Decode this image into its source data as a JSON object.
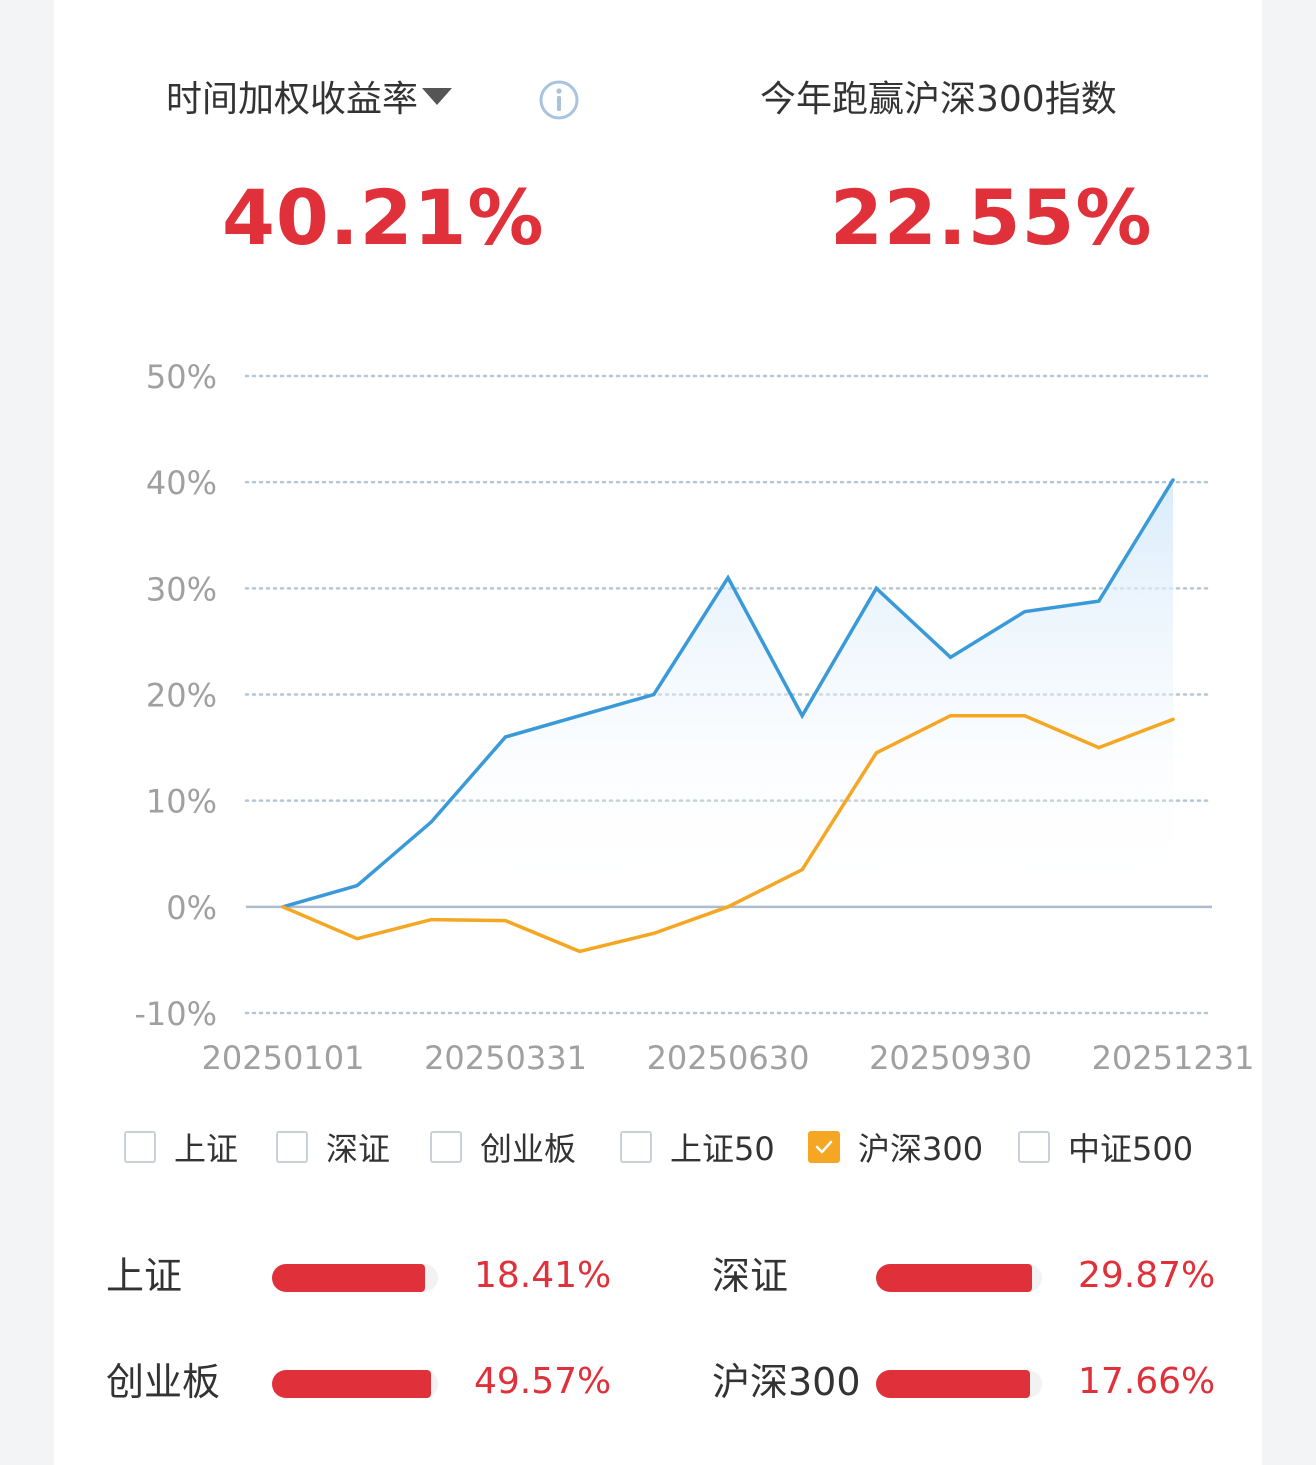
{
  "header": {
    "left_label": "时间加权收益率",
    "left_value": "40.21%",
    "right_label": "今年跑赢沪深300指数",
    "right_value": "22.55%",
    "info_icon": "info-circle-icon",
    "dropdown_icon": "caret-down-icon"
  },
  "chart_data": {
    "type": "line",
    "x": [
      "20250101",
      "20250131",
      "20250228",
      "20250331",
      "20250430",
      "20250531",
      "20250630",
      "20250731",
      "20250831",
      "20250930",
      "20251031",
      "20251130",
      "20251231"
    ],
    "x_tick_labels": [
      "20250101",
      "20250331",
      "20250630",
      "20250930",
      "20251231"
    ],
    "y_tick_labels": [
      "50%",
      "40%",
      "30%",
      "20%",
      "10%",
      "0%",
      "-10%"
    ],
    "ylim": [
      -10,
      50
    ],
    "grid": "dotted horizontal",
    "series": [
      {
        "values": [
          0,
          2,
          8,
          16,
          18,
          20,
          31,
          18,
          30,
          23.5,
          27.8,
          28.8,
          40.21
        ],
        "color": "#3a9ad9"
      },
      {
        "name": "沪深300",
        "values": [
          0,
          -3,
          -1.2,
          -1.3,
          -4.2,
          -2.5,
          0,
          3.5,
          14.5,
          18,
          18,
          15,
          17.66
        ],
        "color": "#f5a623"
      }
    ]
  },
  "legend": {
    "items": [
      {
        "label": "上证",
        "checked": false
      },
      {
        "label": "深证",
        "checked": false
      },
      {
        "label": "创业板",
        "checked": false
      },
      {
        "label": "上证50",
        "checked": false
      },
      {
        "label": "沪深300",
        "checked": true
      },
      {
        "label": "中证500",
        "checked": false
      }
    ]
  },
  "stats": [
    {
      "name": "上证",
      "value": "18.41%",
      "fill": 0.92
    },
    {
      "name": "深证",
      "value": "29.87%",
      "fill": 0.94
    },
    {
      "name": "创业板",
      "value": "49.57%",
      "fill": 0.96
    },
    {
      "name": "沪深300",
      "value": "17.66%",
      "fill": 0.93
    }
  ],
  "colors": {
    "accent_red": "#e0313b",
    "line_blue": "#3a9ad9",
    "line_orange": "#f5a623"
  }
}
